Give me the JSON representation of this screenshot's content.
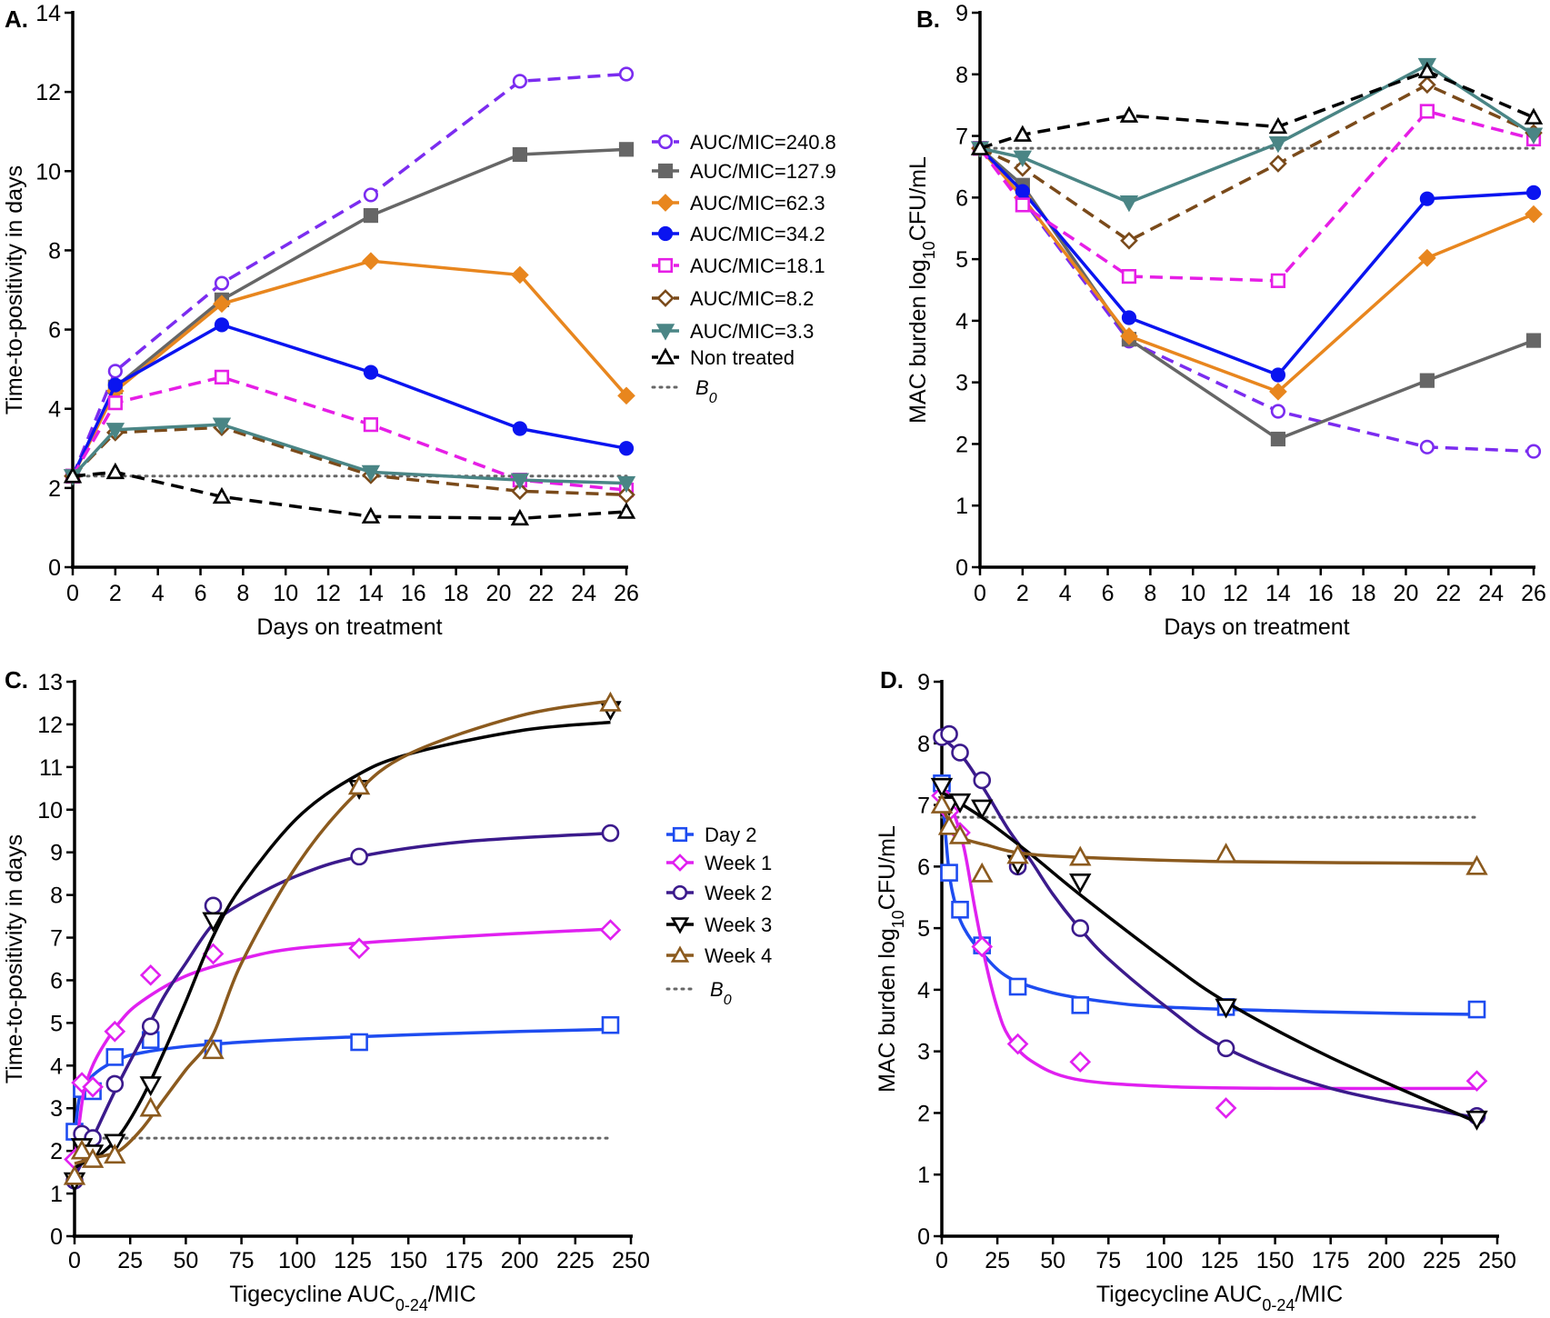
{
  "chart_data": [
    {
      "panel": "A.",
      "type": "line",
      "xlabel": "Days on treatment",
      "ylabel": [
        {
          "t": "Time-to-positivity in days"
        }
      ],
      "xlim": [
        0,
        26
      ],
      "ylim": [
        0,
        14
      ],
      "xticks": [
        0,
        2,
        4,
        6,
        8,
        10,
        12,
        14,
        16,
        18,
        20,
        22,
        24,
        26
      ],
      "yticks": [
        0,
        2,
        4,
        6,
        8,
        10,
        12,
        14
      ],
      "x": [
        0,
        2,
        7,
        14,
        21,
        26
      ],
      "reference": {
        "name": "B",
        "sub": "0",
        "value": 2.3,
        "color": "#666666"
      },
      "series": [
        {
          "name": "AUC/MIC=240.8",
          "color": "#7B2CF0",
          "marker": "circle-open",
          "dash": true,
          "values": [
            2.3,
            4.95,
            7.17,
            9.4,
            12.27,
            12.45
          ]
        },
        {
          "name": "AUC/MIC=127.9",
          "color": "#666666",
          "marker": "square-filled",
          "dash": false,
          "values": [
            2.3,
            4.55,
            6.75,
            8.88,
            10.42,
            10.55
          ]
        },
        {
          "name": "AUC/MIC=62.3",
          "color": "#E8861E",
          "marker": "diamond-filled",
          "dash": false,
          "values": [
            2.3,
            4.45,
            6.65,
            7.73,
            7.38,
            4.33
          ]
        },
        {
          "name": "AUC/MIC=34.2",
          "color": "#0A14F0",
          "marker": "circle-filled",
          "dash": false,
          "values": [
            2.3,
            4.6,
            6.12,
            4.92,
            3.5,
            3.0
          ]
        },
        {
          "name": "AUC/MIC=18.1",
          "color": "#E61EE6",
          "marker": "square-open",
          "dash": true,
          "values": [
            2.3,
            4.15,
            4.8,
            3.6,
            2.2,
            1.95
          ]
        },
        {
          "name": "AUC/MIC=8.2",
          "color": "#7A4A1A",
          "marker": "diamond-open",
          "dash": true,
          "values": [
            2.3,
            3.4,
            3.53,
            2.32,
            1.92,
            1.83
          ]
        },
        {
          "name": "AUC/MIC=3.3",
          "color": "#4A8585",
          "marker": "triangle-down-filled",
          "dash": false,
          "values": [
            2.3,
            3.47,
            3.6,
            2.4,
            2.2,
            2.12
          ]
        },
        {
          "name": "Non treated",
          "color": "#000000",
          "marker": "triangle-up-open",
          "dash": true,
          "values": [
            2.3,
            2.4,
            1.78,
            1.28,
            1.23,
            1.4
          ]
        }
      ]
    },
    {
      "panel": "B.",
      "type": "line",
      "xlabel": "Days on treatment",
      "ylabel": [
        {
          "t": "MAC burden log"
        },
        {
          "t": "10",
          "sub": true
        },
        {
          "t": "CFU/mL"
        }
      ],
      "xlim": [
        0,
        26
      ],
      "ylim": [
        0,
        9
      ],
      "xticks": [
        0,
        2,
        4,
        6,
        8,
        10,
        12,
        14,
        16,
        18,
        20,
        22,
        24,
        26
      ],
      "yticks": [
        0,
        1,
        2,
        3,
        4,
        5,
        6,
        7,
        8,
        9
      ],
      "x": [
        0,
        2,
        7,
        14,
        21,
        26
      ],
      "reference": {
        "value": 6.8,
        "color": "#666666"
      },
      "series": [
        {
          "color": "#7B2CF0",
          "marker": "circle-open",
          "dash": true,
          "values": [
            6.8,
            5.97,
            3.67,
            2.53,
            1.95,
            1.88
          ]
        },
        {
          "color": "#666666",
          "marker": "square-filled",
          "dash": false,
          "values": [
            6.8,
            6.2,
            3.7,
            2.08,
            3.03,
            3.68
          ]
        },
        {
          "color": "#E8861E",
          "marker": "diamond-filled",
          "dash": false,
          "values": [
            6.8,
            6.0,
            3.75,
            2.85,
            5.02,
            5.73
          ]
        },
        {
          "color": "#0A14F0",
          "marker": "circle-filled",
          "dash": false,
          "values": [
            6.8,
            6.1,
            4.05,
            3.12,
            5.98,
            6.08
          ]
        },
        {
          "color": "#E61EE6",
          "marker": "square-open",
          "dash": true,
          "values": [
            6.8,
            5.88,
            4.72,
            4.65,
            7.4,
            6.95
          ]
        },
        {
          "color": "#7A4A1A",
          "marker": "diamond-open",
          "dash": true,
          "values": [
            6.8,
            6.48,
            5.3,
            6.55,
            7.83,
            7.05
          ]
        },
        {
          "color": "#4A8585",
          "marker": "triangle-down-filled",
          "dash": false,
          "values": [
            6.8,
            6.65,
            5.92,
            6.88,
            8.15,
            7.02
          ]
        },
        {
          "color": "#000000",
          "marker": "triangle-up-open",
          "dash": true,
          "values": [
            6.8,
            7.02,
            7.33,
            7.15,
            8.05,
            7.3
          ]
        }
      ]
    },
    {
      "panel": "C.",
      "type": "scatter",
      "xlabel": [
        {
          "t": "Tigecycline AUC"
        },
        {
          "t": "0-24",
          "sub": true
        },
        {
          "t": "/MIC"
        }
      ],
      "ylabel": [
        {
          "t": "Time-to-positivity in days"
        }
      ],
      "xlim": [
        0,
        250
      ],
      "ylim": [
        0,
        13
      ],
      "xticks": [
        0,
        25,
        50,
        75,
        100,
        125,
        150,
        175,
        200,
        225,
        250
      ],
      "yticks": [
        0,
        1,
        2,
        3,
        4,
        5,
        6,
        7,
        8,
        9,
        10,
        11,
        12,
        13
      ],
      "x": [
        0,
        3.3,
        8.2,
        18.1,
        34.2,
        62.3,
        127.9,
        240.8
      ],
      "reference": {
        "name": "B",
        "sub": "0",
        "value": 2.3,
        "color": "#666666"
      },
      "series": [
        {
          "name": "Day 2",
          "color": "#1E4CF0",
          "marker": "square-open",
          "values": [
            2.45,
            3.45,
            3.4,
            4.2,
            4.6,
            4.4,
            4.55,
            4.95
          ],
          "fit": [
            [
              0,
              2.3
            ],
            [
              2,
              3.2
            ],
            [
              5,
              3.55
            ],
            [
              10,
              3.85
            ],
            [
              20,
              4.15
            ],
            [
              30,
              4.3
            ],
            [
              50,
              4.45
            ],
            [
              75,
              4.55
            ],
            [
              100,
              4.62
            ],
            [
              150,
              4.72
            ],
            [
              200,
              4.8
            ],
            [
              240.8,
              4.85
            ]
          ]
        },
        {
          "name": "Week 1",
          "color": "#E020F0",
          "marker": "diamond-open",
          "values": [
            1.8,
            3.6,
            3.5,
            4.8,
            6.12,
            6.62,
            6.75,
            7.18
          ],
          "fit": [
            [
              0,
              1.7
            ],
            [
              3,
              3.0
            ],
            [
              5,
              3.55
            ],
            [
              10,
              4.2
            ],
            [
              20,
              5.0
            ],
            [
              30,
              5.5
            ],
            [
              50,
              6.1
            ],
            [
              75,
              6.5
            ],
            [
              100,
              6.75
            ],
            [
              150,
              6.95
            ],
            [
              200,
              7.1
            ],
            [
              240.8,
              7.2
            ]
          ]
        },
        {
          "name": "Week 2",
          "color": "#3B1A8C",
          "marker": "circle-open",
          "values": [
            1.3,
            2.4,
            2.3,
            3.57,
            4.92,
            7.75,
            8.9,
            9.45
          ],
          "fit": [
            [
              0,
              1.4
            ],
            [
              5,
              1.9
            ],
            [
              10,
              2.5
            ],
            [
              20,
              3.6
            ],
            [
              30,
              4.6
            ],
            [
              40,
              5.6
            ],
            [
              50,
              6.4
            ],
            [
              62,
              7.3
            ],
            [
              75,
              7.8
            ],
            [
              100,
              8.45
            ],
            [
              128,
              8.9
            ],
            [
              175,
              9.25
            ],
            [
              240.8,
              9.45
            ]
          ]
        },
        {
          "name": "Week 3",
          "color": "#000000",
          "marker": "triangle-down-open",
          "values": [
            1.3,
            2.1,
            1.95,
            2.2,
            3.55,
            7.4,
            10.5,
            12.35
          ],
          "fit": [
            [
              0,
              1.6
            ],
            [
              5,
              1.75
            ],
            [
              10,
              1.85
            ],
            [
              20,
              2.35
            ],
            [
              30,
              3.2
            ],
            [
              40,
              4.3
            ],
            [
              50,
              5.5
            ],
            [
              62,
              7.0
            ],
            [
              75,
              8.2
            ],
            [
              100,
              9.8
            ],
            [
              125,
              10.75
            ],
            [
              150,
              11.3
            ],
            [
              200,
              11.85
            ],
            [
              240.8,
              12.05
            ]
          ]
        },
        {
          "name": "Week 4",
          "color": "#8B5A1E",
          "marker": "triangle-up-open",
          "values": [
            1.4,
            2.0,
            1.8,
            1.9,
            3.0,
            4.35,
            10.55,
            12.5
          ],
          "fit": [
            [
              0,
              1.7
            ],
            [
              10,
              1.85
            ],
            [
              20,
              2.0
            ],
            [
              30,
              2.5
            ],
            [
              40,
              3.2
            ],
            [
              50,
              3.9
            ],
            [
              62,
              4.7
            ],
            [
              75,
              6.4
            ],
            [
              100,
              8.7
            ],
            [
              125,
              10.3
            ],
            [
              150,
              11.3
            ],
            [
              200,
              12.2
            ],
            [
              240.8,
              12.55
            ]
          ]
        }
      ]
    },
    {
      "panel": "D.",
      "type": "scatter",
      "xlabel": [
        {
          "t": "Tigecycline AUC"
        },
        {
          "t": "0-24",
          "sub": true
        },
        {
          "t": "/MIC"
        }
      ],
      "ylabel": [
        {
          "t": "MAC burden log"
        },
        {
          "t": "10",
          "sub": true
        },
        {
          "t": "CFU/mL"
        }
      ],
      "xlim": [
        0,
        250
      ],
      "ylim": [
        0,
        9
      ],
      "xticks": [
        0,
        25,
        50,
        75,
        100,
        125,
        150,
        175,
        200,
        225,
        250
      ],
      "yticks": [
        0,
        1,
        2,
        3,
        4,
        5,
        6,
        7,
        8,
        9
      ],
      "x": [
        0,
        3.3,
        8.2,
        18.1,
        34.2,
        62.3,
        127.9,
        240.8
      ],
      "reference": {
        "value": 6.8,
        "color": "#666666"
      },
      "series": [
        {
          "color": "#1E4CF0",
          "marker": "square-open",
          "values": [
            7.35,
            5.9,
            5.3,
            4.72,
            4.05,
            3.75,
            3.72,
            3.68
          ],
          "fit": [
            [
              0,
              7.3
            ],
            [
              3,
              6.0
            ],
            [
              6,
              5.4
            ],
            [
              10,
              5.0
            ],
            [
              18,
              4.6
            ],
            [
              30,
              4.2
            ],
            [
              50,
              3.95
            ],
            [
              75,
              3.8
            ],
            [
              100,
              3.72
            ],
            [
              150,
              3.66
            ],
            [
              200,
              3.62
            ],
            [
              240.8,
              3.6
            ]
          ]
        },
        {
          "color": "#E020F0",
          "marker": "diamond-open",
          "values": [
            7.15,
            6.9,
            6.55,
            4.7,
            3.12,
            2.83,
            2.08,
            2.52
          ],
          "fit": [
            [
              0,
              7.2
            ],
            [
              5,
              6.9
            ],
            [
              10,
              6.3
            ],
            [
              15,
              5.3
            ],
            [
              20,
              4.4
            ],
            [
              25,
              3.7
            ],
            [
              30,
              3.25
            ],
            [
              40,
              2.85
            ],
            [
              60,
              2.55
            ],
            [
              100,
              2.43
            ],
            [
              150,
              2.4
            ],
            [
              240.8,
              2.4
            ]
          ]
        },
        {
          "color": "#3B1A8C",
          "marker": "circle-open",
          "values": [
            8.1,
            8.15,
            7.85,
            7.4,
            6.0,
            5.0,
            3.05,
            1.95
          ],
          "fit": [
            [
              0,
              8.1
            ],
            [
              10,
              7.75
            ],
            [
              20,
              7.2
            ],
            [
              30,
              6.6
            ],
            [
              40,
              6.1
            ],
            [
              50,
              5.55
            ],
            [
              62,
              5.0
            ],
            [
              75,
              4.5
            ],
            [
              100,
              3.75
            ],
            [
              128,
              3.05
            ],
            [
              175,
              2.4
            ],
            [
              240.8,
              1.92
            ]
          ]
        },
        {
          "color": "#000000",
          "marker": "triangle-down-open",
          "values": [
            7.3,
            7.0,
            7.05,
            6.95,
            6.05,
            5.75,
            3.72,
            1.9
          ],
          "fit": [
            [
              0,
              7.2
            ],
            [
              5,
              7.1
            ],
            [
              20,
              6.75
            ],
            [
              40,
              6.2
            ],
            [
              62,
              5.55
            ],
            [
              100,
              4.5
            ],
            [
              128,
              3.8
            ],
            [
              175,
              2.9
            ],
            [
              240.8,
              1.85
            ]
          ]
        },
        {
          "color": "#8B5A1E",
          "marker": "triangle-up-open",
          "values": [
            7.0,
            6.65,
            6.5,
            5.88,
            6.18,
            6.15,
            6.2,
            6.0
          ],
          "fit": [
            [
              0,
              7.0
            ],
            [
              5,
              6.6
            ],
            [
              10,
              6.45
            ],
            [
              20,
              6.35
            ],
            [
              35,
              6.22
            ],
            [
              62,
              6.15
            ],
            [
              128,
              6.08
            ],
            [
              240.8,
              6.05
            ]
          ]
        }
      ]
    }
  ]
}
